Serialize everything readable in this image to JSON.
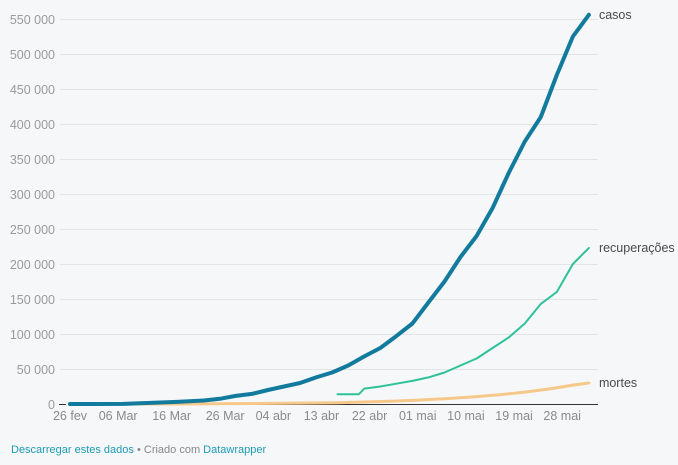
{
  "chart_data": {
    "type": "line",
    "title": "",
    "xlabel": "",
    "ylabel": "",
    "ylim": [
      0,
      550000
    ],
    "yticks": [
      0,
      50000,
      100000,
      150000,
      200000,
      250000,
      300000,
      350000,
      400000,
      450000,
      500000,
      550000
    ],
    "ytick_labels": [
      "0",
      "50 000",
      "100 000",
      "150 000",
      "200 000",
      "250 000",
      "300 000",
      "350 000",
      "400 000",
      "450 000",
      "500 000",
      "550 000"
    ],
    "xtick_labels": [
      "26 fev",
      "06 Mar",
      "16 Mar",
      "26 Mar",
      "04 abr",
      "13 abr",
      "22 abr",
      "01 mai",
      "10 mai",
      "19 mai",
      "28 mai"
    ],
    "xtick_days": [
      0,
      9,
      19,
      29,
      38,
      47,
      56,
      65,
      74,
      83,
      92
    ],
    "x_unit": "days since 26 fev",
    "grid": true,
    "legend_position": "inline-right",
    "series": [
      {
        "name": "casos",
        "color": "#127a9c",
        "width": 4,
        "x": [
          0,
          5,
          10,
          15,
          20,
          25,
          28,
          31,
          34,
          37,
          40,
          43,
          46,
          49,
          52,
          55,
          58,
          61,
          64,
          67,
          70,
          73,
          76,
          79,
          82,
          85,
          88,
          91,
          94,
          97
        ],
        "values": [
          1,
          20,
          150,
          1500,
          3000,
          5000,
          7500,
          11500,
          14500,
          20000,
          25000,
          30000,
          38000,
          45000,
          55000,
          68000,
          80000,
          97000,
          115000,
          145000,
          175000,
          210000,
          240000,
          280000,
          330000,
          375000,
          410000,
          470000,
          525000,
          556000
        ]
      },
      {
        "name": "recuperações",
        "color": "#2fc19a",
        "width": 2,
        "x": [
          50,
          54,
          55,
          58,
          61,
          64,
          67,
          70,
          73,
          76,
          79,
          82,
          85,
          88,
          91,
          94,
          97
        ],
        "values": [
          14000,
          14000,
          22000,
          25000,
          29000,
          33000,
          38000,
          45000,
          55000,
          65000,
          80000,
          95000,
          115000,
          143000,
          160000,
          200000,
          223000
        ]
      },
      {
        "name": "mortes",
        "color": "#f6c88a",
        "width": 3,
        "x": [
          0,
          20,
          30,
          40,
          50,
          55,
          60,
          65,
          70,
          75,
          80,
          85,
          90,
          94,
          97
        ],
        "values": [
          0,
          0,
          500,
          1000,
          1800,
          2800,
          4000,
          5500,
          7500,
          10000,
          13000,
          17000,
          22000,
          27000,
          30000
        ]
      }
    ]
  },
  "footer": {
    "download_link": "Descarregar estes dados",
    "separator": " • Criado com ",
    "datawrapper_link": "Datawrapper"
  }
}
